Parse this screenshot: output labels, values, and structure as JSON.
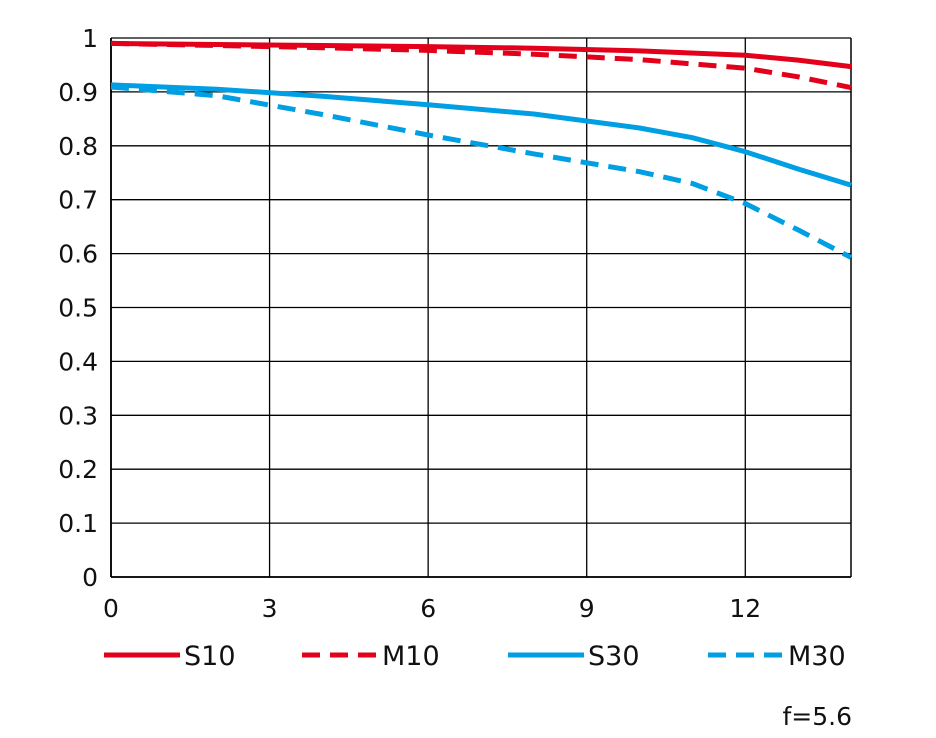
{
  "chart_data": {
    "type": "line",
    "title": "",
    "xlabel": "",
    "ylabel": "",
    "xlim": [
      0,
      14
    ],
    "ylim": [
      0,
      1
    ],
    "grid": true,
    "x_ticks": [
      "0",
      "3",
      "6",
      "9",
      "12"
    ],
    "y_ticks": [
      "0",
      "0.1",
      "0.2",
      "0.3",
      "0.4",
      "0.5",
      "0.6",
      "0.7",
      "0.8",
      "0.9",
      "1"
    ],
    "legend_position": "bottom",
    "annotation": "f=5.6",
    "series": [
      {
        "name": "S10",
        "color": "#e2001a",
        "dash": "solid",
        "x": [
          0,
          2,
          4,
          6,
          8,
          10,
          12,
          13,
          14
        ],
        "y": [
          0.99,
          0.988,
          0.986,
          0.984,
          0.981,
          0.976,
          0.968,
          0.959,
          0.947
        ]
      },
      {
        "name": "M10",
        "color": "#e2001a",
        "dash": "dashed",
        "x": [
          0,
          2,
          4,
          6,
          8,
          10,
          12,
          13,
          14
        ],
        "y": [
          0.99,
          0.986,
          0.982,
          0.977,
          0.97,
          0.96,
          0.944,
          0.928,
          0.908
        ]
      },
      {
        "name": "S30",
        "color": "#009fe3",
        "dash": "solid",
        "x": [
          0,
          2,
          4,
          6,
          8,
          10,
          11,
          12,
          13,
          14
        ],
        "y": [
          0.913,
          0.905,
          0.892,
          0.876,
          0.859,
          0.833,
          0.815,
          0.789,
          0.757,
          0.727
        ]
      },
      {
        "name": "M30",
        "color": "#009fe3",
        "dash": "dashed",
        "x": [
          0,
          2,
          4,
          6,
          8,
          10,
          11,
          12,
          13,
          14
        ],
        "y": [
          0.909,
          0.893,
          0.858,
          0.82,
          0.785,
          0.752,
          0.73,
          0.693,
          0.644,
          0.593
        ]
      }
    ]
  }
}
